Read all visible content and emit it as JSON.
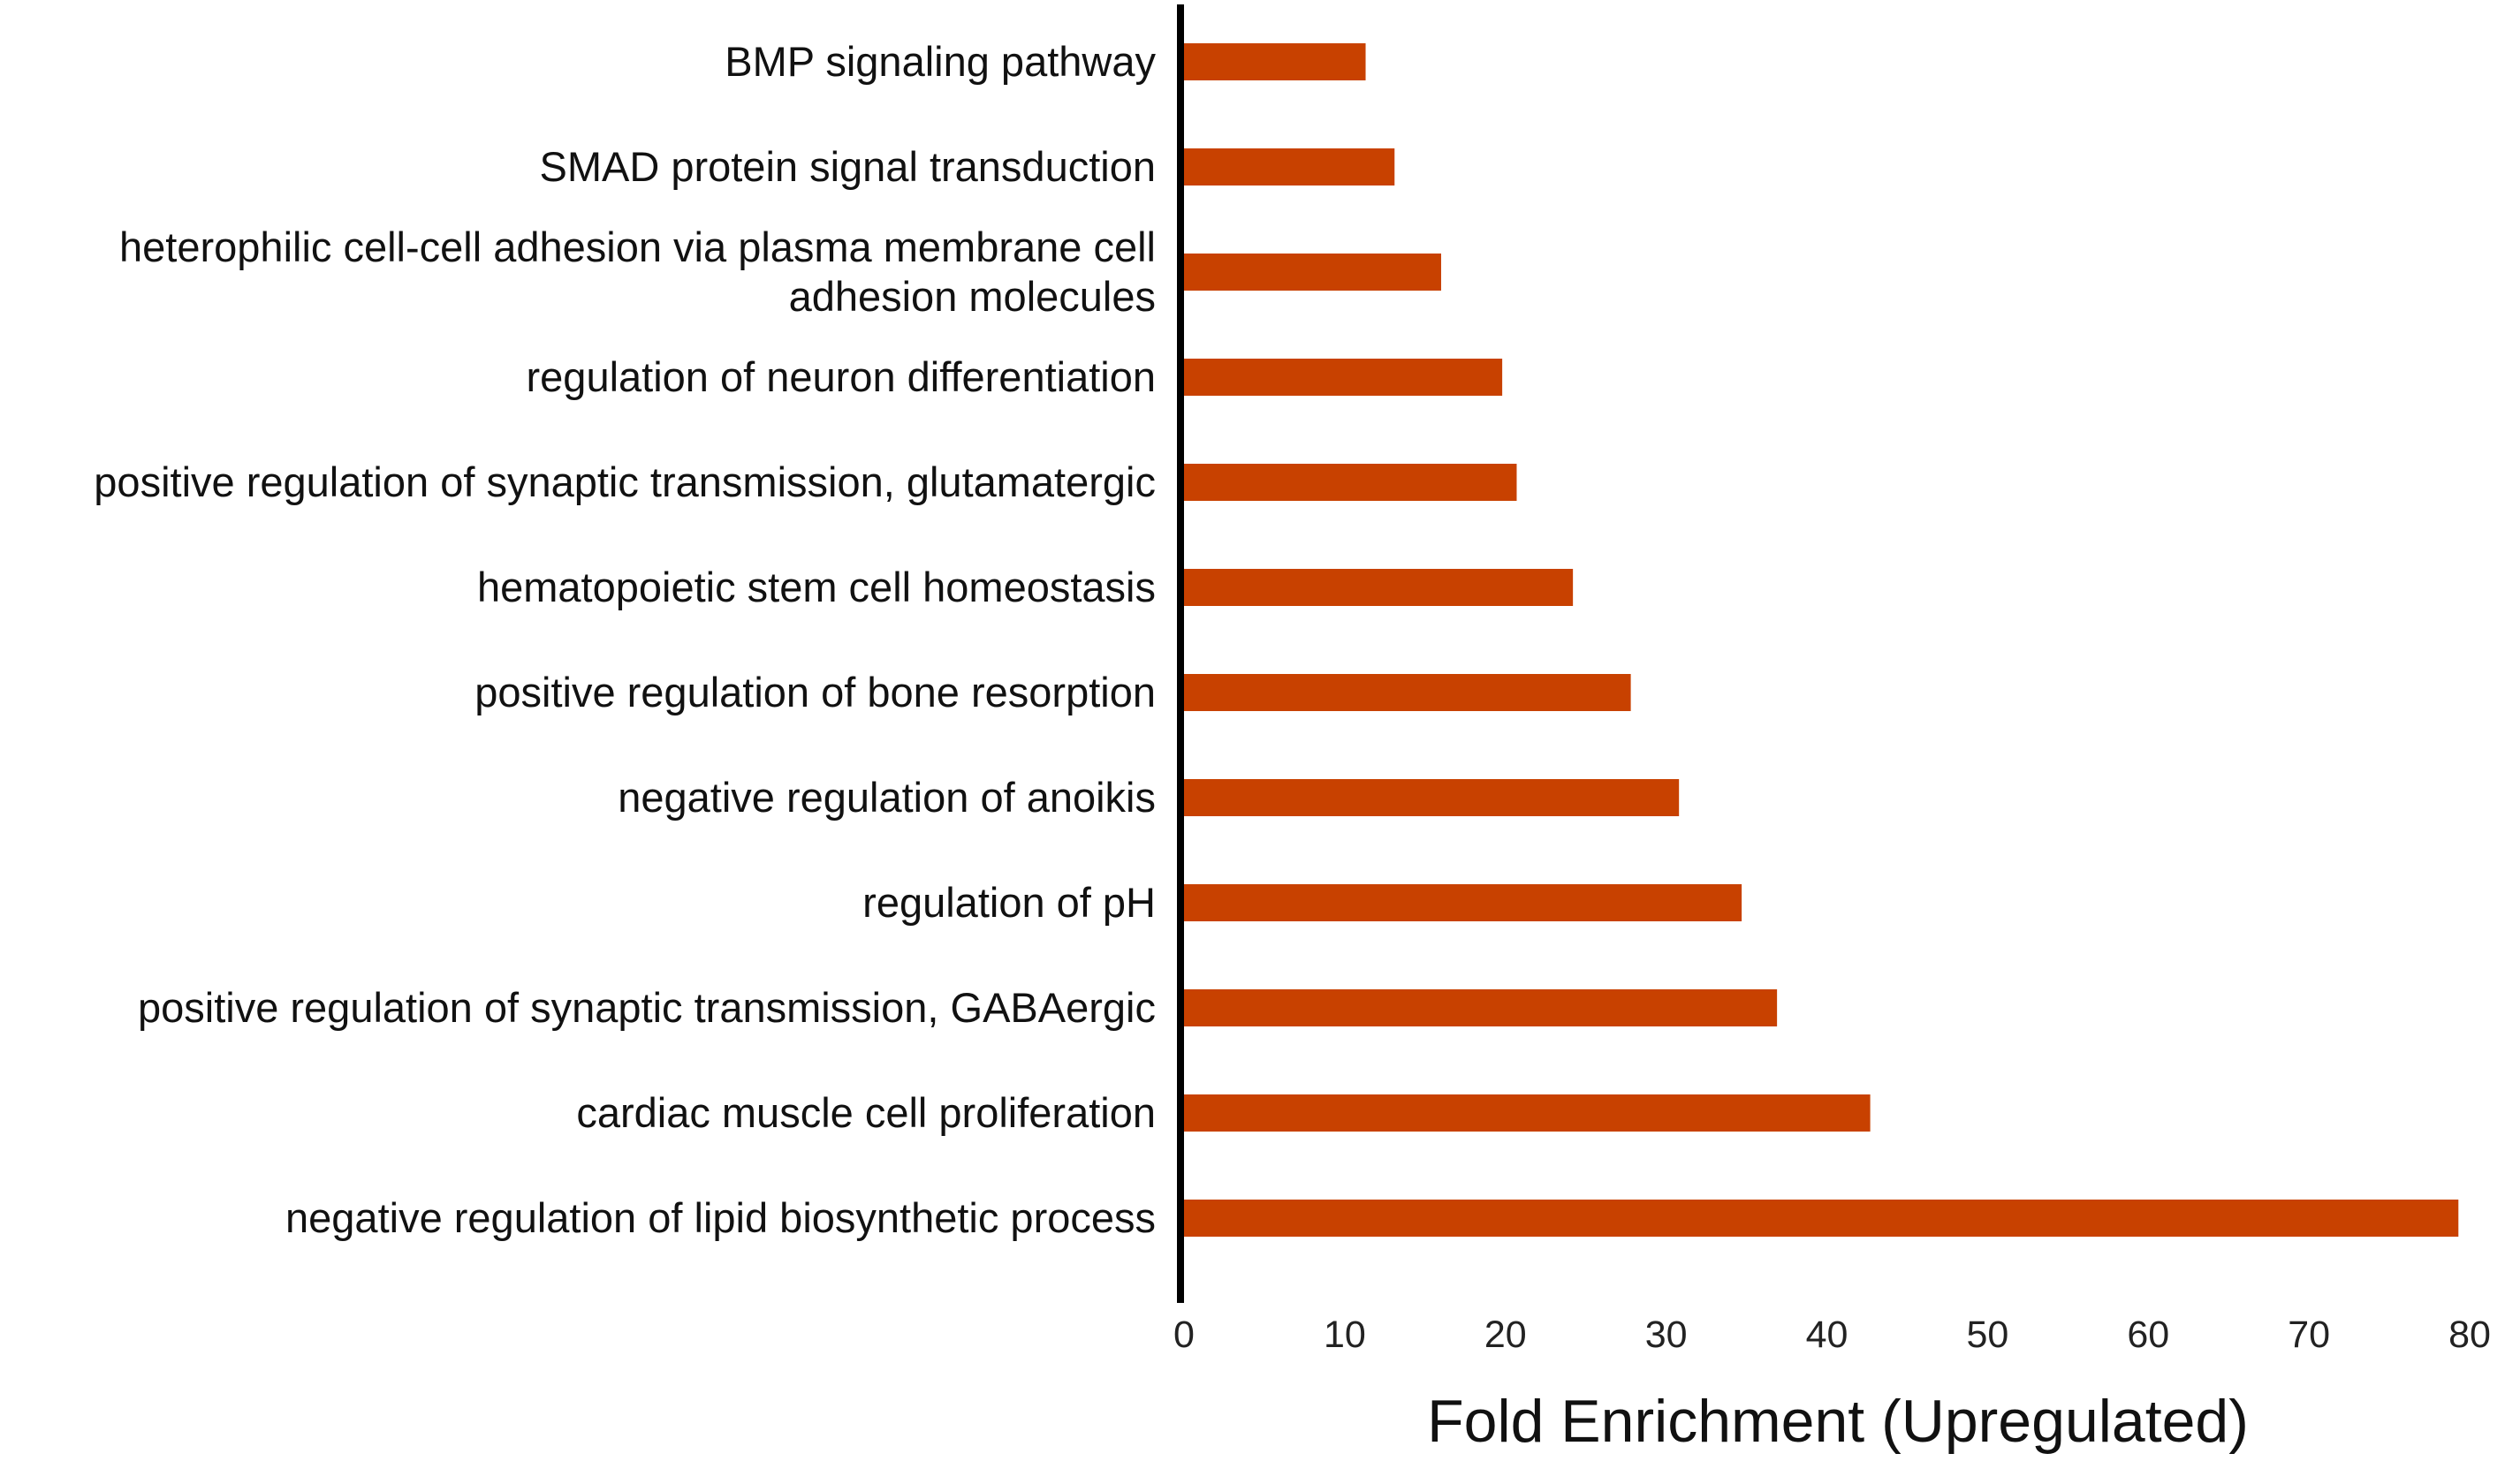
{
  "chart_data": {
    "type": "bar",
    "orientation": "horizontal",
    "xlabel": "Fold Enrichment (Upregulated)",
    "ylabel": "",
    "xlim": [
      0,
      80
    ],
    "x_ticks": [
      0,
      10,
      20,
      30,
      40,
      50,
      60,
      70,
      80
    ],
    "grid": false,
    "bar_color": "#c84100",
    "categories": [
      [
        "BMP signaling pathway"
      ],
      [
        "SMAD protein signal transduction"
      ],
      [
        "heterophilic cell-cell adhesion via plasma membrane cell",
        "adhesion molecules"
      ],
      [
        "regulation of neuron differentiation"
      ],
      [
        "positive regulation of synaptic transmission, glutamatergic"
      ],
      [
        "hematopoietic stem cell homeostasis"
      ],
      [
        "positive regulation of bone resorption"
      ],
      [
        "negative regulation of anoikis"
      ],
      [
        "regulation of pH"
      ],
      [
        "positive regulation of synaptic transmission, GABAergic"
      ],
      [
        "cardiac muscle cell proliferation"
      ],
      [
        "negative regulation of lipid biosynthetic process"
      ]
    ],
    "values": [
      11.3,
      13.1,
      16.0,
      19.8,
      20.7,
      24.2,
      27.8,
      30.8,
      34.7,
      36.9,
      42.7,
      79.3
    ]
  }
}
